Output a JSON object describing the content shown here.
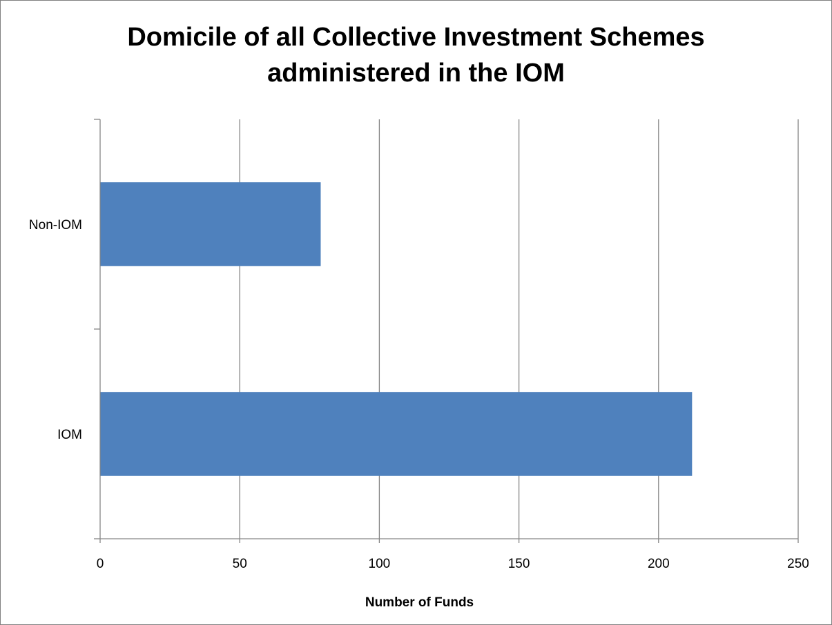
{
  "chart_data": {
    "type": "bar",
    "orientation": "horizontal",
    "title": "Domicile of all Collective Investment Schemes administered in the IOM",
    "title_lines": [
      "Domicile of all Collective Investment Schemes",
      "administered in the IOM"
    ],
    "categories": [
      "IOM",
      "Non-IOM"
    ],
    "values": [
      212,
      79
    ],
    "xlabel": "Number of Funds",
    "ylabel": "",
    "xlim": [
      0,
      250
    ],
    "xticks": [
      0,
      50,
      100,
      150,
      200,
      250
    ],
    "xtick_labels": [
      "0",
      "50",
      "100",
      "150",
      "200",
      "250"
    ],
    "grid": "vertical gridlines on",
    "legend": "none",
    "bar_color": "#4F81BD",
    "gridline_color": "#868686"
  }
}
